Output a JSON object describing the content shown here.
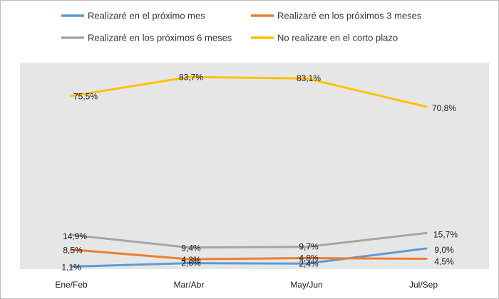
{
  "chart_data": {
    "type": "line",
    "categories": [
      "Ene/Feb",
      "Mar/Abr",
      "May/Jun",
      "Jul/Sep"
    ],
    "series": [
      {
        "name": "Realizaré en el próximo mes",
        "color": "#5b9bd5",
        "values": [
          1.1,
          2.6,
          2.4,
          9.0
        ],
        "labels": [
          "1,1%",
          "2,6%",
          "2,4%",
          "9,0%"
        ]
      },
      {
        "name": "Realizaré en los próximos 3 meses",
        "color": "#ed7d31",
        "values": [
          8.5,
          4.3,
          4.8,
          4.5
        ],
        "labels": [
          "8,5%",
          "4,3%",
          "4,8%",
          "4,5%"
        ]
      },
      {
        "name": "Realizaré en los próximos 6 meses",
        "color": "#a5a5a5",
        "values": [
          14.9,
          9.4,
          9.7,
          15.7
        ],
        "labels": [
          "14,9%",
          "9,4%",
          "9,7%",
          "15,7%"
        ]
      },
      {
        "name": "No realizare en el corto plazo",
        "color": "#ffc000",
        "values": [
          75.5,
          83.7,
          83.1,
          70.8
        ],
        "labels": [
          "75,5%",
          "83,7%",
          "83,1%",
          "70,8%"
        ]
      }
    ],
    "ylim": [
      0,
      90
    ],
    "grid": false,
    "legend_position": "top",
    "plot_background": "#e6e6e6",
    "title": "",
    "xlabel": "",
    "ylabel": ""
  }
}
